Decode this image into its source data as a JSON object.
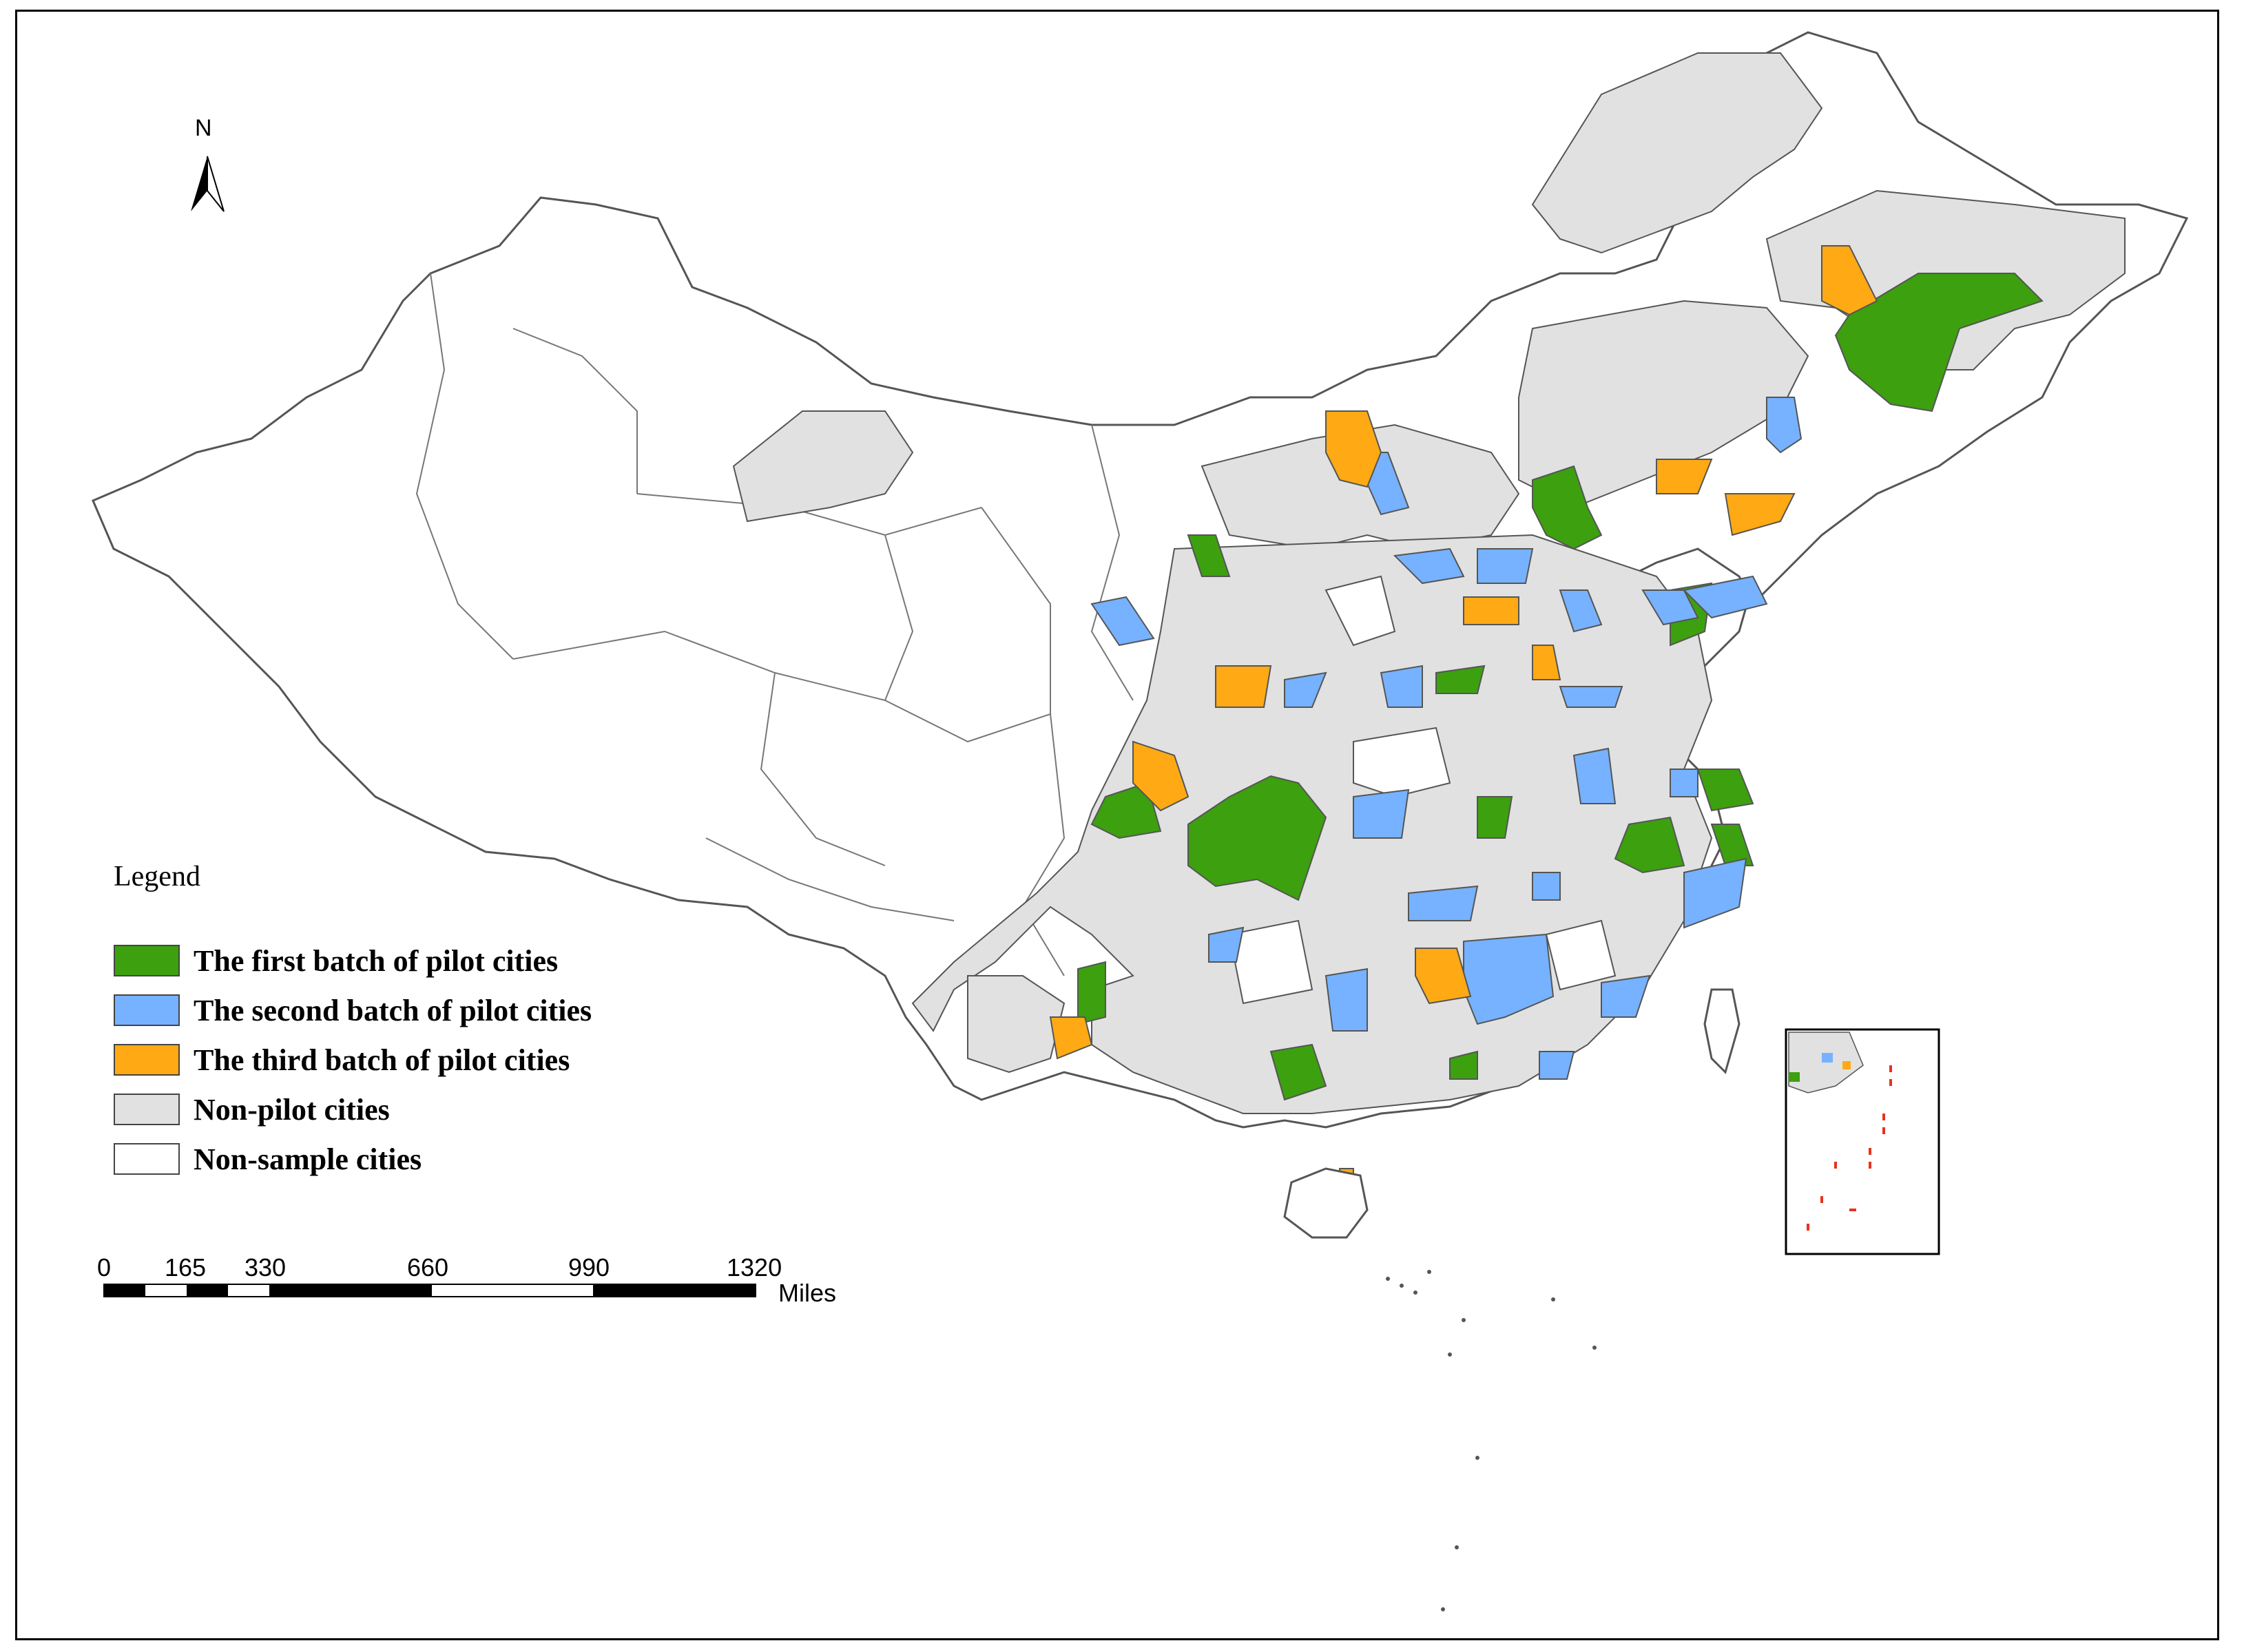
{
  "map": {
    "north_label": "N",
    "legend": {
      "title": "Legend",
      "items": [
        {
          "label": "The first batch of pilot cities",
          "color": "#3ca00f"
        },
        {
          "label": "The second batch of pilot cities",
          "color": "#76b2ff"
        },
        {
          "label": "The third batch of pilot cities",
          "color": "#ffaa14"
        },
        {
          "label": "Non-pilot cities",
          "color": "#e1e1e1"
        },
        {
          "label": "Non-sample cities",
          "color": "#ffffff"
        }
      ]
    },
    "scale_bar": {
      "ticks": [
        "0",
        "165",
        "330",
        "660",
        "990",
        "1320"
      ],
      "unit": "Miles"
    },
    "colors": {
      "first": "#3ca00f",
      "second": "#76b2ff",
      "third": "#ffaa14",
      "non_pilot": "#e1e1e1",
      "non_sample": "#ffffff",
      "boundary": "#555555",
      "dashed_line": "#e8321e"
    }
  }
}
